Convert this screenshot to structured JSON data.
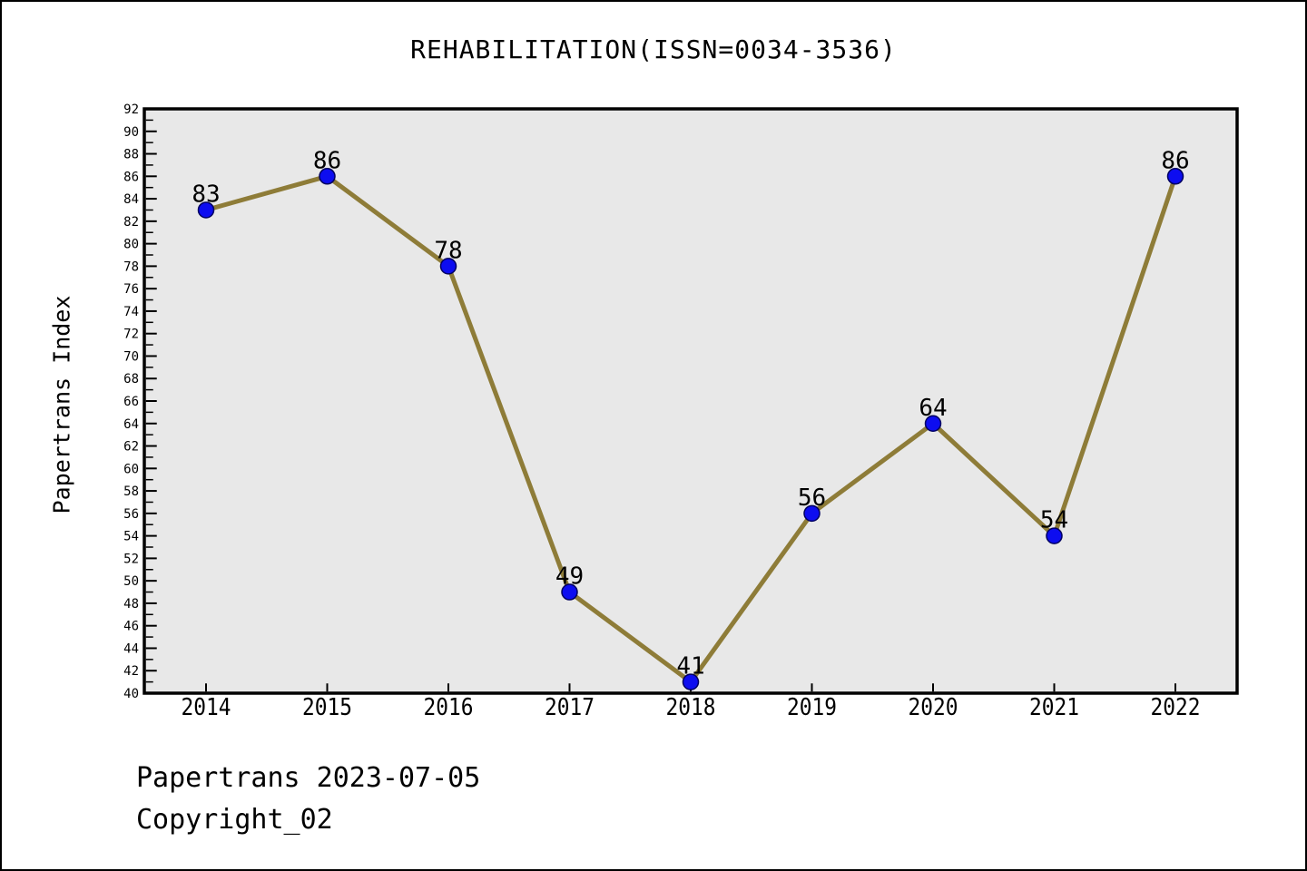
{
  "title": "REHABILITATION(ISSN=0034-3536)",
  "footer": {
    "line1": "Papertrans 2023-07-05",
    "line2": "Copyright_02"
  },
  "chart_data": {
    "type": "line",
    "title": "REHABILITATION(ISSN=0034-3536)",
    "xlabel": "",
    "ylabel": "Papertrans Index",
    "categories": [
      "2014",
      "2015",
      "2016",
      "2017",
      "2018",
      "2019",
      "2020",
      "2021",
      "2022"
    ],
    "series": [
      {
        "name": "Papertrans Index",
        "values": [
          83,
          86,
          78,
          49,
          41,
          56,
          64,
          54,
          86
        ]
      }
    ],
    "point_labels_shown": true,
    "ylim": [
      40,
      92
    ],
    "ytick_step": 2,
    "yminor_step": 1,
    "grid": false,
    "legend_position": "none",
    "colors": {
      "line": "#8e7c38",
      "marker_fill": "#0d0df0",
      "marker_edge": "#000060",
      "plot_background": "#e8e8e8",
      "axis": "#000000",
      "text": "#000000"
    }
  }
}
